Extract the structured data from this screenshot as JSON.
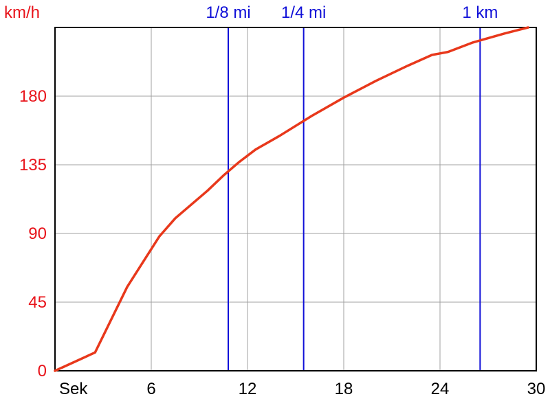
{
  "chart_data": {
    "type": "line",
    "title": "",
    "xlabel": "Sek",
    "ylabel": "km/h",
    "xlim": [
      0,
      30
    ],
    "ylim": [
      0,
      225
    ],
    "x_ticks": [
      6,
      12,
      18,
      24,
      30
    ],
    "y_ticks": [
      0,
      45,
      90,
      135,
      180
    ],
    "grid": true,
    "colors": {
      "series": "#e8381b",
      "markers": "#1010d8",
      "y_ticks": "#e8141b",
      "x_ticks": "#000000",
      "grid": "#a0a0a0"
    },
    "series": [
      {
        "x": [
          0,
          2.5,
          4.5,
          6.5,
          7.5,
          9.5,
          10.5,
          11.5,
          12.5,
          14,
          16,
          18,
          20,
          22,
          23.5,
          24.5,
          26,
          28,
          29.5
        ],
        "y": [
          0,
          12,
          55,
          88,
          100,
          118,
          128,
          137,
          145,
          154,
          167,
          179,
          190,
          200,
          207,
          209,
          215,
          221,
          225
        ]
      }
    ],
    "markers": [
      {
        "label": "1/8 mi",
        "x": 10.8
      },
      {
        "label": "1/4 mi",
        "x": 15.5
      },
      {
        "label": "1 km",
        "x": 26.5
      }
    ]
  }
}
